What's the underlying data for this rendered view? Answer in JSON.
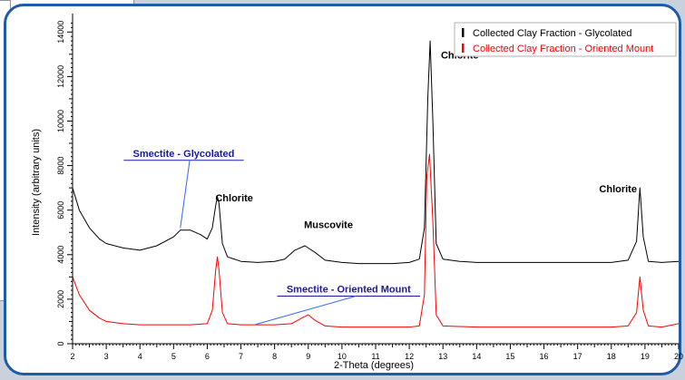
{
  "chart_data": {
    "type": "line",
    "title": "",
    "xlabel": "2-Theta (degrees)",
    "ylabel": "Intensity (arbitrary units)",
    "xlim": [
      2,
      20
    ],
    "ylim": [
      0,
      14500
    ],
    "xticks": [
      2,
      3,
      4,
      5,
      6,
      7,
      8,
      9,
      10,
      11,
      12,
      13,
      14,
      15,
      16,
      17,
      18,
      19,
      20
    ],
    "yticks": [
      0,
      2000,
      4000,
      6000,
      8000,
      10000,
      12000,
      14000
    ],
    "grid": false,
    "legend_position": "top-right",
    "series": [
      {
        "name": "Collected Clay Fraction - Glycolated",
        "color": "#000000",
        "x": [
          2.0,
          2.2,
          2.5,
          2.8,
          3.0,
          3.5,
          4.0,
          4.5,
          5.0,
          5.2,
          5.5,
          5.8,
          6.0,
          6.15,
          6.25,
          6.3,
          6.35,
          6.45,
          6.6,
          7.0,
          7.5,
          8.0,
          8.3,
          8.6,
          8.9,
          9.2,
          9.5,
          10.0,
          10.5,
          11.0,
          11.5,
          12.0,
          12.3,
          12.45,
          12.55,
          12.62,
          12.7,
          12.8,
          13.0,
          13.5,
          14.0,
          15.0,
          16.0,
          17.0,
          18.0,
          18.5,
          18.75,
          18.85,
          18.95,
          19.1,
          19.5,
          20.0
        ],
        "values": [
          7000,
          6000,
          5200,
          4700,
          4500,
          4300,
          4200,
          4400,
          4800,
          5100,
          5100,
          4900,
          4700,
          5200,
          6200,
          6600,
          6300,
          4500,
          3900,
          3700,
          3650,
          3700,
          3800,
          4200,
          4400,
          4100,
          3750,
          3650,
          3600,
          3600,
          3600,
          3650,
          3800,
          5200,
          11000,
          13600,
          10000,
          4500,
          3800,
          3700,
          3650,
          3650,
          3650,
          3650,
          3650,
          3750,
          4600,
          7000,
          4800,
          3700,
          3650,
          3700
        ]
      },
      {
        "name": "Collected Clay Fraction - Oriented Mount",
        "color": "#ff0000",
        "x": [
          2.0,
          2.2,
          2.5,
          2.8,
          3.0,
          3.5,
          4.0,
          4.5,
          5.0,
          5.5,
          6.0,
          6.15,
          6.25,
          6.3,
          6.35,
          6.45,
          6.6,
          7.0,
          7.5,
          8.0,
          8.5,
          8.8,
          9.0,
          9.2,
          9.5,
          10.0,
          11.0,
          12.0,
          12.3,
          12.45,
          12.52,
          12.6,
          12.7,
          12.8,
          13.0,
          14.0,
          15.0,
          16.0,
          17.0,
          18.0,
          18.5,
          18.75,
          18.85,
          18.95,
          19.1,
          19.5,
          20.0
        ],
        "values": [
          3000,
          2200,
          1500,
          1150,
          1000,
          900,
          850,
          850,
          850,
          850,
          900,
          1500,
          3300,
          3900,
          3300,
          1400,
          900,
          850,
          850,
          850,
          900,
          1150,
          1300,
          1050,
          800,
          750,
          750,
          750,
          800,
          2200,
          7500,
          8500,
          5500,
          1300,
          800,
          750,
          750,
          750,
          750,
          750,
          800,
          1400,
          3000,
          1500,
          800,
          750,
          900
        ]
      }
    ],
    "annotations": [
      {
        "text": "Chlorite",
        "x": 6.8,
        "y": 6400,
        "style": "bold"
      },
      {
        "text": "Muscovite",
        "x": 9.6,
        "y": 5200,
        "style": "bold"
      },
      {
        "text": "Chlorite",
        "x": 13.5,
        "y": 12800,
        "style": "bold"
      },
      {
        "text": "Chlorite",
        "x": 18.2,
        "y": 6800,
        "style": "bold"
      },
      {
        "text": "Smectite - Glycolated",
        "x": 5.3,
        "y": 8400,
        "style": "link",
        "color": "#1a1aa6",
        "pointer_to": [
          5.2,
          5200
        ]
      },
      {
        "text": "Smectite - Oriented Mount",
        "x": 10.2,
        "y": 2300,
        "style": "link",
        "color": "#1a1aa6",
        "pointer_to": [
          7.4,
          850
        ]
      }
    ]
  }
}
